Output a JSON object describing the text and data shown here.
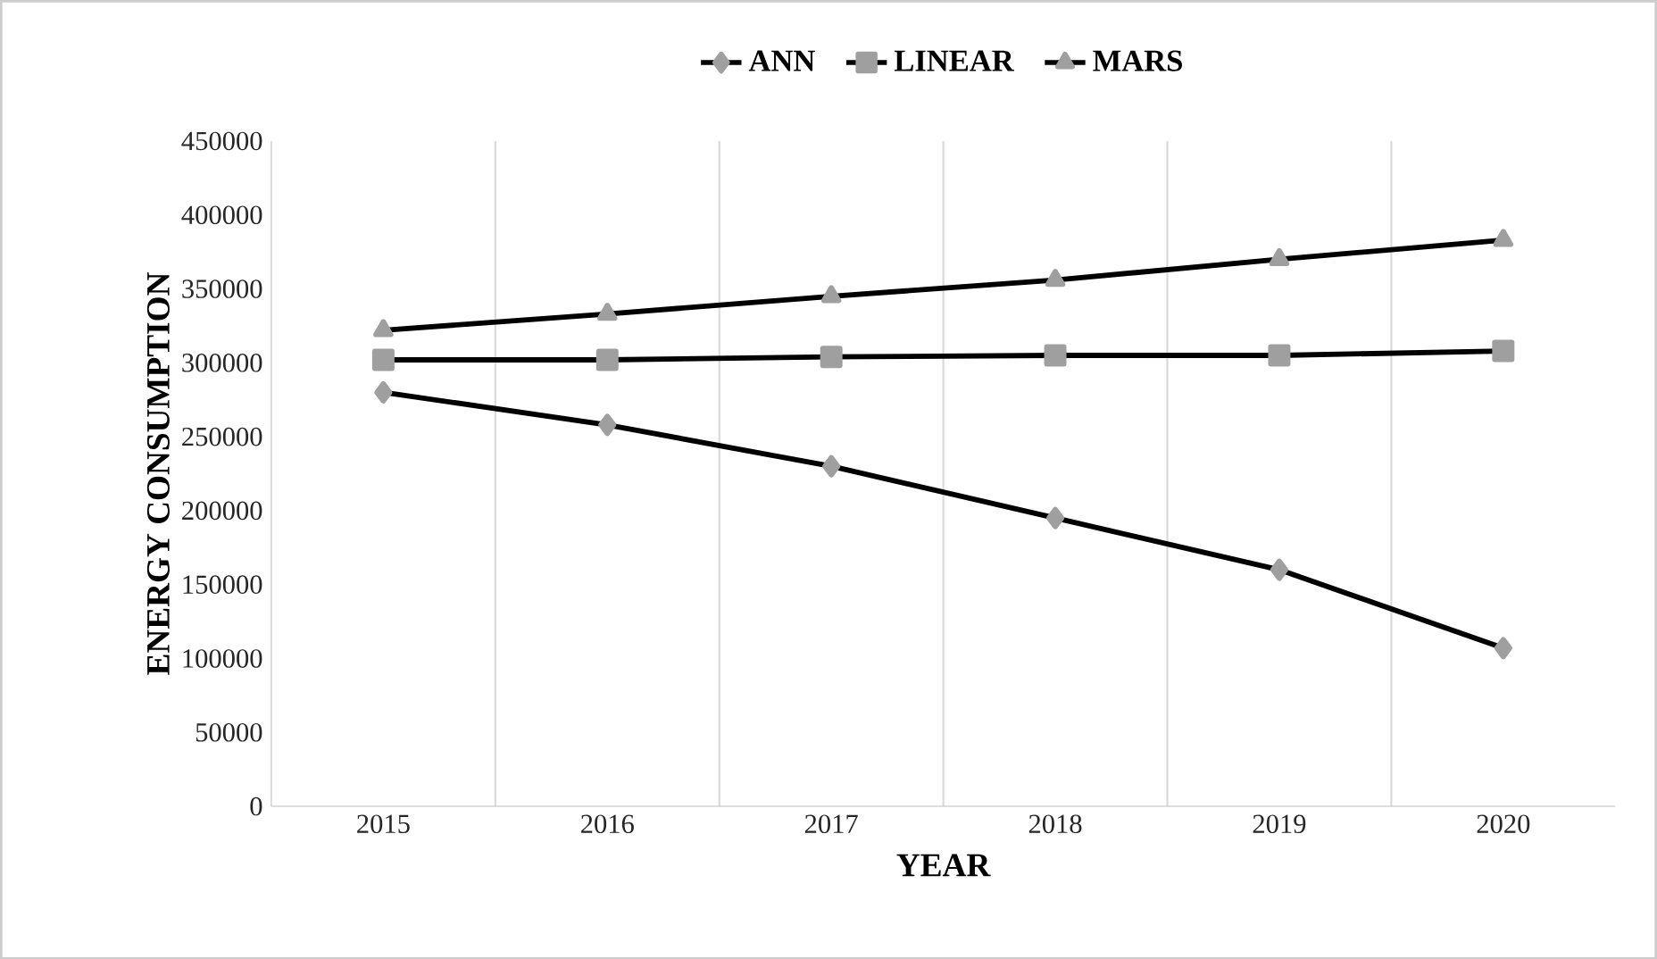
{
  "chart_data": {
    "type": "line",
    "xlabel": "YEAR",
    "ylabel": "ENERGY CONSUMPTION",
    "categories": [
      "2015",
      "2016",
      "2017",
      "2018",
      "2019",
      "2020"
    ],
    "series": [
      {
        "name": "ANN",
        "color": "#000000",
        "marker": "diamond",
        "values": [
          280000,
          258000,
          230000,
          195000,
          160000,
          107000
        ]
      },
      {
        "name": "LINEAR",
        "color": "#000000",
        "marker": "square",
        "values": [
          302000,
          302000,
          304000,
          305000,
          305000,
          308000
        ]
      },
      {
        "name": "MARS",
        "color": "#000000",
        "marker": "triangle",
        "values": [
          322000,
          333000,
          345000,
          356000,
          370000,
          383000
        ]
      }
    ],
    "ylim": [
      0,
      450000
    ],
    "yticks": [
      0,
      50000,
      100000,
      150000,
      200000,
      250000,
      300000,
      350000,
      400000,
      450000
    ],
    "grid": "x",
    "legend": "top",
    "line_style": "solid"
  }
}
